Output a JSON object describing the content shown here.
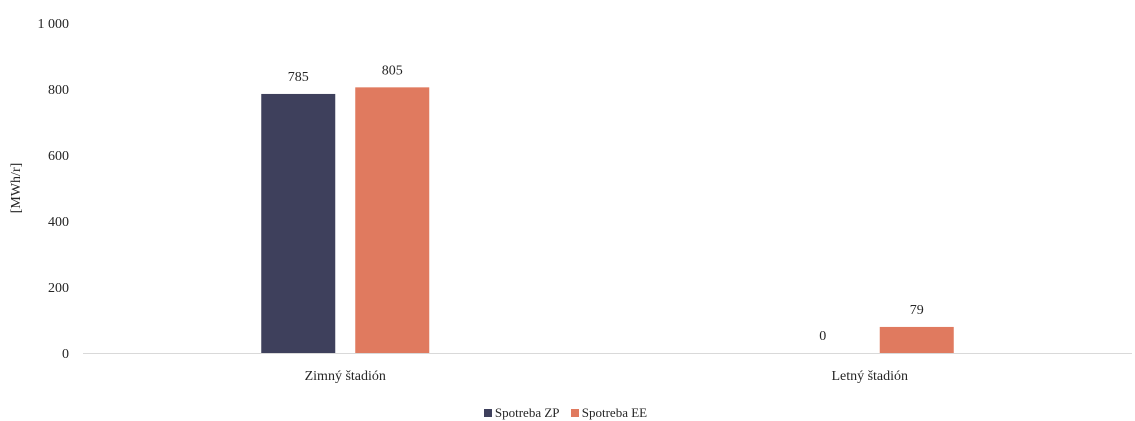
{
  "chart_data": {
    "type": "bar",
    "categories": [
      "Zimný štadión",
      "Letný štadión"
    ],
    "series": [
      {
        "name": "Spotreba ZP",
        "values": [
          785,
          0
        ],
        "color": "#3e405c"
      },
      {
        "name": "Spotreba EE",
        "values": [
          805,
          79
        ],
        "color": "#e07a5f"
      }
    ],
    "ylabel": "[MWh/r]",
    "ylim": [
      0,
      1000
    ],
    "yticks": [
      0,
      200,
      400,
      600,
      800,
      1000
    ],
    "ytick_labels": [
      "0",
      "200",
      "400",
      "600",
      "800",
      "1 000"
    ],
    "data_labels": [
      [
        "785",
        "0"
      ],
      [
        "805",
        "79"
      ]
    ],
    "grid": false,
    "legend": "bottom"
  }
}
